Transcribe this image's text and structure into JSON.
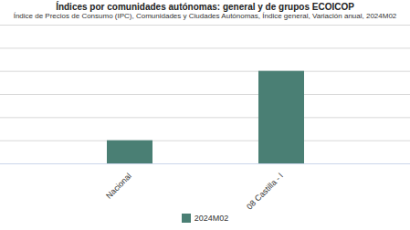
{
  "chart_data": {
    "type": "bar",
    "title": "Índices por comunidades autónomas: general y de grupos ECOICOP",
    "subtitle": "Índice de Precios de Consumo (IPC), Comunidades y Ciudades Autónomas, Índice general, Variación anual, 2024M02",
    "categories": [
      "Nacional",
      "08 Castilla - l"
    ],
    "series": [
      {
        "name": "2024M02",
        "color": "#4a7f74",
        "values": [
          2.8,
          3.4
        ]
      }
    ],
    "ylim": [
      2.6,
      3.8
    ],
    "yticks": [
      2.6,
      2.8,
      3.0,
      3.2,
      3.4,
      3.6,
      3.8
    ],
    "grid": true,
    "tick_labels": "x",
    "legend": "bottom"
  }
}
